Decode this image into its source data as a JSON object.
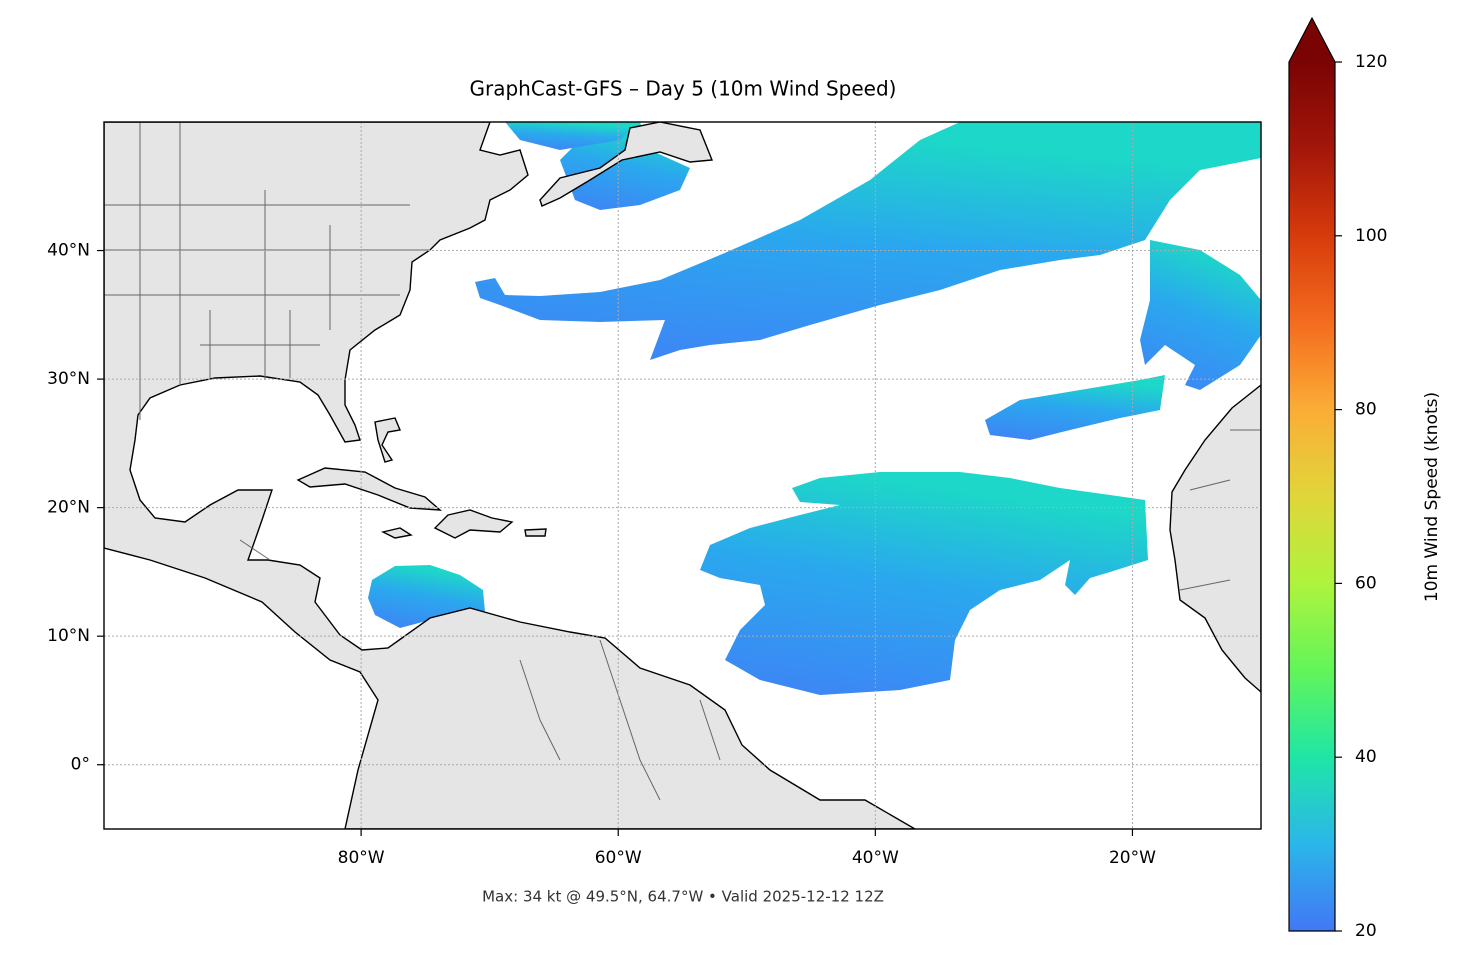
{
  "chart_data": {
    "type": "map",
    "title": "GraphCast-GFS – Day 5 (10m Wind Speed)",
    "footer": "Max: 34 kt @ 49.5°N, 64.7°W • Valid 2025-12-12 12Z",
    "xlim": [
      -100,
      -10
    ],
    "ylim": [
      -5,
      50
    ],
    "xticks": [
      {
        "value": -80,
        "label": "80°W"
      },
      {
        "value": -60,
        "label": "60°W"
      },
      {
        "value": -40,
        "label": "40°W"
      },
      {
        "value": -20,
        "label": "20°W"
      }
    ],
    "yticks": [
      {
        "value": 0,
        "label": "0°"
      },
      {
        "value": 10,
        "label": "10°N"
      },
      {
        "value": 20,
        "label": "20°N"
      },
      {
        "value": 30,
        "label": "30°N"
      },
      {
        "value": 40,
        "label": "40°N"
      }
    ],
    "grid": true,
    "colorbar": {
      "label": "10m Wind Speed (knots)",
      "lim": [
        20,
        120
      ],
      "ticks": [
        20,
        40,
        60,
        80,
        100,
        120
      ],
      "extend": "max",
      "colors": [
        "#4277f5",
        "#2bb6ea",
        "#1fe6a6",
        "#62f55a",
        "#aef33d",
        "#e0d63a",
        "#fbad36",
        "#f46c1e",
        "#d73b0b",
        "#a3160a",
        "#7a0403"
      ]
    }
  }
}
